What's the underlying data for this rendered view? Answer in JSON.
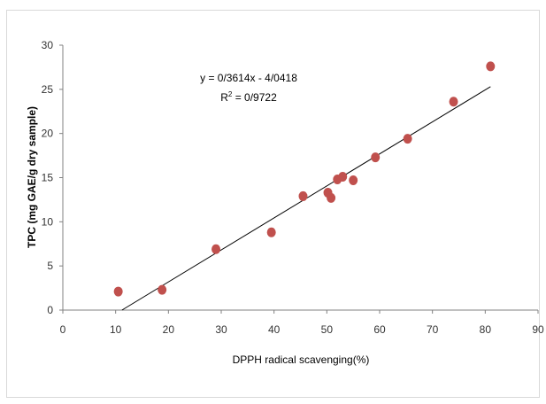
{
  "chart_data": {
    "type": "scatter",
    "title": "",
    "xlabel": "DPPH radical scavenging(%)",
    "ylabel": "TPC (mg GAE/g dry sample)",
    "xlim": [
      0,
      90
    ],
    "ylim": [
      0,
      30
    ],
    "x_ticks": [
      "0",
      "10",
      "20",
      "30",
      "40",
      "50",
      "60",
      "70",
      "80",
      "90"
    ],
    "y_ticks": [
      "0",
      "5",
      "10",
      "15",
      "20",
      "25",
      "30"
    ],
    "points": [
      {
        "x": 10.5,
        "y": 2.1
      },
      {
        "x": 18.8,
        "y": 2.3
      },
      {
        "x": 29.0,
        "y": 6.9
      },
      {
        "x": 39.5,
        "y": 8.8
      },
      {
        "x": 45.5,
        "y": 12.9
      },
      {
        "x": 50.2,
        "y": 13.3
      },
      {
        "x": 50.8,
        "y": 12.7
      },
      {
        "x": 52.0,
        "y": 14.8
      },
      {
        "x": 53.0,
        "y": 15.1
      },
      {
        "x": 55.0,
        "y": 14.7
      },
      {
        "x": 59.2,
        "y": 17.3
      },
      {
        "x": 65.3,
        "y": 19.4
      },
      {
        "x": 74.0,
        "y": 23.6
      },
      {
        "x": 81.0,
        "y": 27.6
      }
    ],
    "trendline": {
      "x": [
        11.2,
        81.0
      ],
      "y": [
        0,
        25.3
      ]
    },
    "equation": "y = 0/3614x - 4/0418",
    "r_squared_prefix": "R",
    "r_squared_sup": "2",
    "r_squared_value": " = 0/9722",
    "legend": "none",
    "grid": false,
    "colors": {
      "point": "#c0504d",
      "line": "#000000",
      "axis": "#808080"
    }
  }
}
